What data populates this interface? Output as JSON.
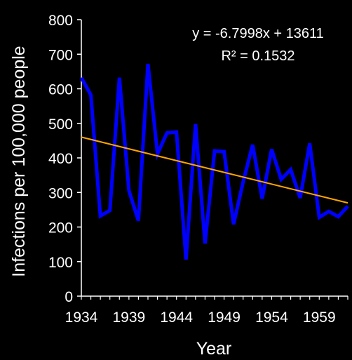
{
  "chart_data": {
    "type": "line",
    "title": "",
    "xlabel": "Year",
    "ylabel": "Infections per 100,000 people",
    "xlim": [
      1934,
      1962
    ],
    "ylim": [
      0,
      800
    ],
    "x_ticks": [
      1934,
      1939,
      1944,
      1949,
      1954,
      1959
    ],
    "y_ticks": [
      0,
      100,
      200,
      300,
      400,
      500,
      600,
      700,
      800
    ],
    "grid": false,
    "legend": "none",
    "series": [
      {
        "color": "#0000ff",
        "x": [
          1934,
          1935,
          1936,
          1937,
          1938,
          1939,
          1940,
          1941,
          1942,
          1943,
          1944,
          1945,
          1946,
          1947,
          1948,
          1949,
          1950,
          1951,
          1952,
          1953,
          1954,
          1955,
          1956,
          1957,
          1958,
          1959,
          1960,
          1961,
          1962
        ],
        "y": [
          632,
          582,
          232,
          248,
          632,
          305,
          218,
          672,
          412,
          472,
          475,
          106,
          498,
          152,
          420,
          418,
          208,
          330,
          438,
          282,
          425,
          338,
          366,
          284,
          442,
          228,
          245,
          230,
          260
        ]
      }
    ],
    "trendline": {
      "color": "#ffa500",
      "slope": -6.7998,
      "intercept": 13611,
      "equation": "y = -6.7998x + 13611",
      "r_squared": "R² = 0.1532"
    }
  }
}
